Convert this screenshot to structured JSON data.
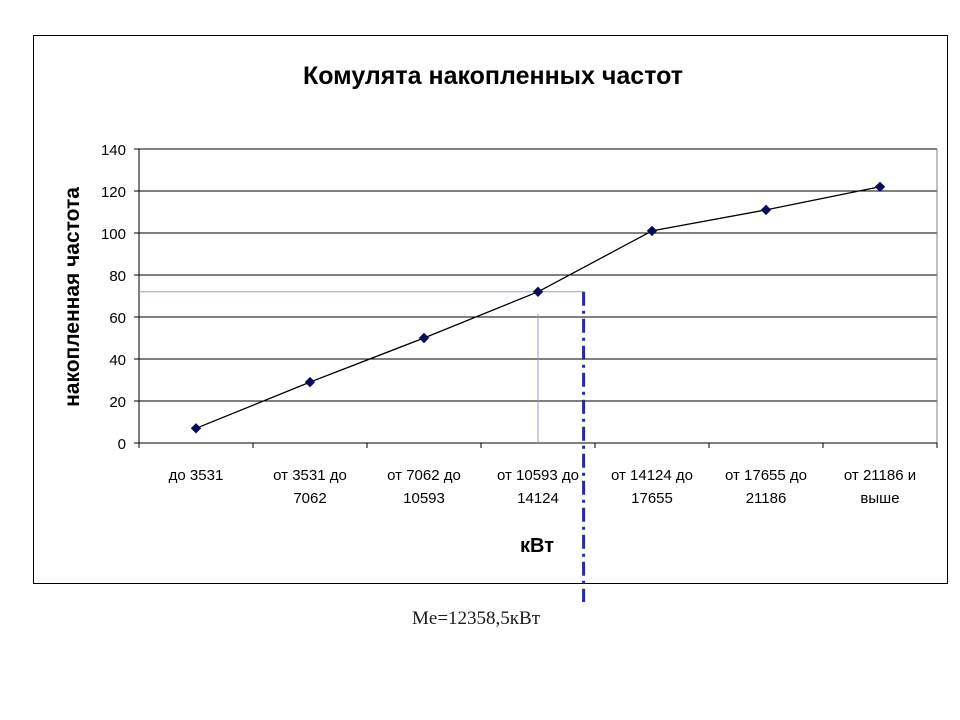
{
  "chart_data": {
    "type": "line",
    "title": "Комулята накопленных частот",
    "xlabel": "кВт",
    "ylabel": "накопленная частота",
    "categories": [
      [
        "до 3531"
      ],
      [
        "от 3531 до",
        "7062"
      ],
      [
        "от 7062 до",
        "10593"
      ],
      [
        "от 10593 до",
        "14124"
      ],
      [
        "от 14124 до",
        "17655"
      ],
      [
        "от 17655 до",
        "21186"
      ],
      [
        "от 21186 и",
        "выше"
      ]
    ],
    "values": [
      7,
      29,
      50,
      72,
      101,
      111,
      122
    ],
    "ylim": [
      0,
      140
    ],
    "yticks": [
      0,
      20,
      40,
      60,
      80,
      100,
      120,
      140
    ],
    "grid": true,
    "legend": "none",
    "annotations": {
      "median_level": 72,
      "median_crossing_category": 3.5,
      "median_dashed_category": 3.9,
      "median_label": "Me=12358,5кВт"
    },
    "colors": {
      "line": "#000000",
      "marker": "#0a0a5a",
      "median_dash": "#2a2a9a",
      "guide": "#9a9ad0",
      "grid": "#000000"
    }
  }
}
